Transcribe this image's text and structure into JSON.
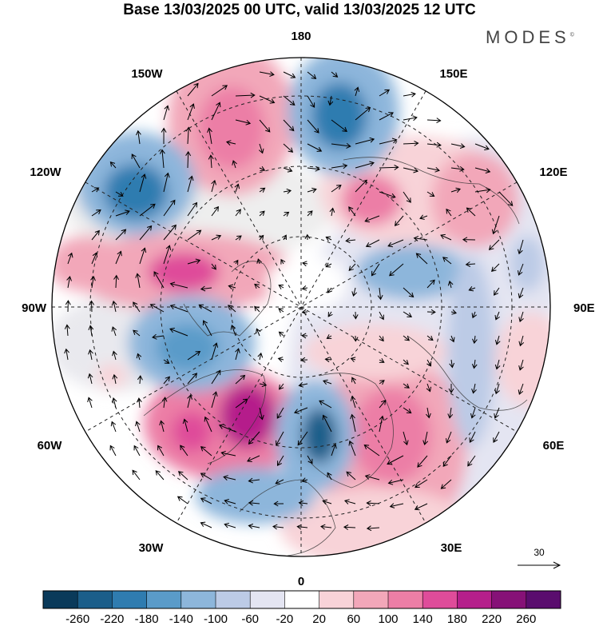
{
  "title": "Base 13/03/2025 00 UTC, valid 13/03/2025 12 UTC",
  "brand": {
    "name": "MODES",
    "mark": "©"
  },
  "map": {
    "projection": "north polar stereographic",
    "longitude_labels": {
      "top": "180",
      "bottom": "0",
      "left": "90W",
      "right": "90E",
      "upper_left": "150W",
      "upper_right": "150E",
      "left_upper": "120W",
      "right_upper": "120E",
      "lower_left": "60W",
      "lower_right": "60E",
      "bottom_left": "30W",
      "bottom_right": "30E"
    },
    "reference_vector": {
      "value": "30"
    }
  },
  "colorbar": {
    "ticks": [
      "-260",
      "-220",
      "-180",
      "-140",
      "-100",
      "-60",
      "-20",
      "20",
      "60",
      "100",
      "140",
      "180",
      "220",
      "260"
    ],
    "colors": [
      "#0a3a5a",
      "#1b5e8a",
      "#2f7cb0",
      "#5a9bc9",
      "#8db6db",
      "#bccbe6",
      "#e4e5f2",
      "#ffffff",
      "#f8d3d8",
      "#f2a7b9",
      "#ec7ea6",
      "#df4c9a",
      "#b51f8b",
      "#861177",
      "#5a0d6e"
    ]
  },
  "anomaly_centers": [
    {
      "kind": "positive",
      "lon_lat": "160W 60N",
      "peak": 180
    },
    {
      "kind": "negative",
      "lon_lat": "170E 58N",
      "peak": -220
    },
    {
      "kind": "negative",
      "lon_lat": "130W 45N",
      "peak": -220
    },
    {
      "kind": "positive",
      "lon_lat": "100W 55N",
      "peak": 180
    },
    {
      "kind": "negative",
      "lon_lat": "75W 55N",
      "peak": -180
    },
    {
      "kind": "positive",
      "lon_lat": "50W 45N",
      "peak": 220
    },
    {
      "kind": "negative",
      "lon_lat": "10W 65N",
      "peak": -220
    },
    {
      "kind": "positive",
      "lon_lat": "30E 55N",
      "peak": 180
    },
    {
      "kind": "positive",
      "lon_lat": "140E 65N",
      "peak": 140
    },
    {
      "kind": "negative",
      "lon_lat": "80E 65N",
      "peak": -140
    }
  ]
}
